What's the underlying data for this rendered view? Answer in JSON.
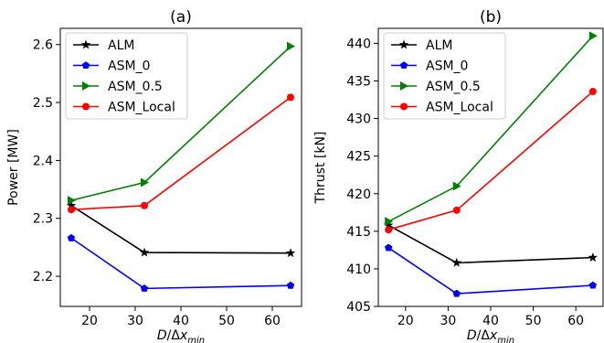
{
  "chart_data": [
    {
      "type": "line",
      "title": "(a)",
      "xlabel": "D/Δx_min",
      "ylabel": "Power [MW]",
      "xlim": [
        13.6,
        66.4
      ],
      "ylim": [
        2.148,
        2.628
      ],
      "xticks": [
        20,
        30,
        40,
        50,
        60
      ],
      "yticks": [
        2.2,
        2.3,
        2.4,
        2.5,
        2.6
      ],
      "ytick_labels": [
        "2.2",
        "2.3",
        "2.4",
        "2.5",
        "2.6"
      ],
      "x": [
        16,
        32,
        64
      ],
      "legend_position": "upper-left",
      "series": [
        {
          "name": "ALM",
          "color": "#000000",
          "marker": "star",
          "values": [
            2.322,
            2.241,
            2.24
          ]
        },
        {
          "name": "ASM_0",
          "color": "#0000ff",
          "marker": "pentagon",
          "values": [
            2.266,
            2.179,
            2.184
          ]
        },
        {
          "name": "ASM_0.5",
          "color": "#008000",
          "marker": "triangle-right",
          "values": [
            2.331,
            2.362,
            2.597
          ]
        },
        {
          "name": "ASM_Local",
          "color": "#ff0000",
          "marker": "circle",
          "values": [
            2.315,
            2.322,
            2.509
          ]
        }
      ]
    },
    {
      "type": "line",
      "title": "(b)",
      "xlabel": "D/Δx_min",
      "ylabel": "Thrust [kN]",
      "xlim": [
        13.6,
        66.4
      ],
      "ylim": [
        405.0,
        442.0
      ],
      "xticks": [
        20,
        30,
        40,
        50,
        60
      ],
      "yticks": [
        405,
        410,
        415,
        420,
        425,
        430,
        435,
        440
      ],
      "ytick_labels": [
        "405",
        "410",
        "415",
        "420",
        "425",
        "430",
        "435",
        "440"
      ],
      "x": [
        16,
        32,
        64
      ],
      "legend_position": "upper-left",
      "series": [
        {
          "name": "ALM",
          "color": "#000000",
          "marker": "star",
          "values": [
            415.8,
            410.8,
            411.5
          ]
        },
        {
          "name": "ASM_0",
          "color": "#0000ff",
          "marker": "pentagon",
          "values": [
            412.8,
            406.7,
            407.8
          ]
        },
        {
          "name": "ASM_0.5",
          "color": "#008000",
          "marker": "triangle-right",
          "values": [
            416.3,
            421.0,
            441.0
          ]
        },
        {
          "name": "ASM_Local",
          "color": "#ff0000",
          "marker": "circle",
          "values": [
            415.2,
            417.8,
            433.6
          ]
        }
      ]
    }
  ]
}
